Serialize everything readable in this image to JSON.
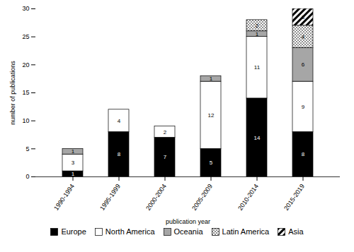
{
  "chart_data": {
    "type": "bar",
    "stacked": true,
    "data_labels": true,
    "legend": "bottom",
    "x_label": "publication year",
    "y_label": "number of publications",
    "categories": [
      "1990-1994",
      "1995-1999",
      "2000-2004",
      "2005-2009",
      "2010-2014",
      "2015-2019"
    ],
    "series": [
      {
        "name": "Europe",
        "color": "#000000",
        "values": [
          1,
          8,
          7,
          5,
          14,
          8
        ]
      },
      {
        "name": "North America",
        "color": "#ffffff",
        "values": [
          3,
          4,
          2,
          12,
          11,
          9
        ]
      },
      {
        "name": "Oceania",
        "color": "#a6a6a6",
        "values": [
          1,
          0,
          0,
          1,
          1,
          6
        ]
      },
      {
        "name": "Latin America",
        "color": "#ffffff",
        "values": [
          0,
          0,
          0,
          0,
          2,
          4
        ]
      },
      {
        "name": "Asia",
        "color": "#ffffff",
        "values": [
          0,
          0,
          0,
          0,
          0,
          3
        ]
      }
    ],
    "ylim": [
      0,
      30
    ],
    "yticks": [
      0,
      5,
      10,
      15,
      20,
      25,
      30
    ]
  }
}
